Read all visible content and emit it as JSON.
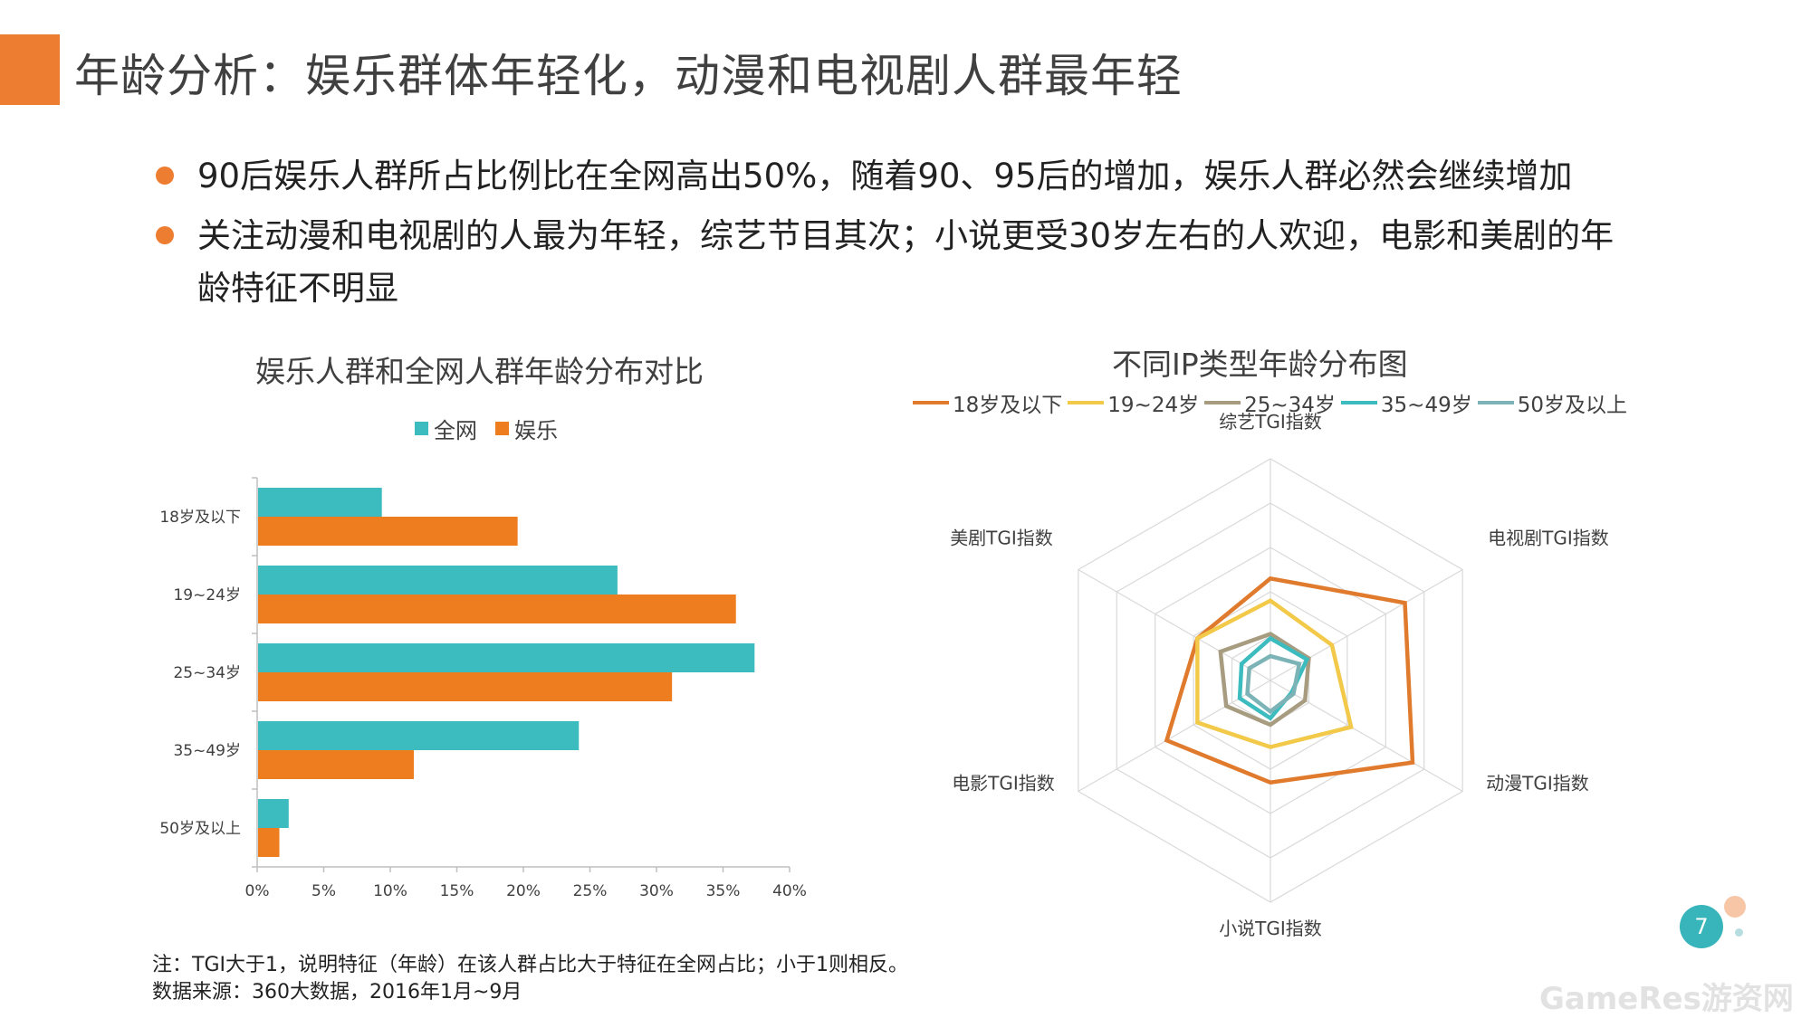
{
  "page": {
    "title": "年龄分析：娱乐群体年轻化，动漫和电视剧人群最年轻",
    "page_number": "7",
    "watermark": "GameRes游资网"
  },
  "bullets": [
    "90后娱乐人群所占比例比在全网高出50%，随着90、95后的增加，娱乐人群必然会继续增加",
    "关注动漫和电视剧的人最为年轻，综艺节目其次；小说更受30岁左右的人欢迎，电影和美剧的年龄特征不明显"
  ],
  "notes": {
    "line1": "注：TGI大于1，说明特征（年龄）在该人群占比大于特征在全网占比；小于1则相反。",
    "line2": "数据来源：360大数据，2016年1月~9月"
  },
  "colors": {
    "accent": "#ed7d31",
    "teal": "#3dbcbf",
    "orange": "#ed7d1e",
    "r18": "#e07a2c",
    "r19": "#f3c94a",
    "r25": "#a89c80",
    "r35": "#3dbcbf",
    "r50": "#7bb3b6"
  },
  "chart_data": [
    {
      "type": "bar",
      "orientation": "horizontal",
      "title": "娱乐人群和全网人群年龄分布对比",
      "categories": [
        "18岁及以下",
        "19~24岁",
        "25~34岁",
        "35~49岁",
        "50岁及以上"
      ],
      "series": [
        {
          "name": "全网",
          "values": [
            9.3,
            27.0,
            37.3,
            24.1,
            2.3
          ]
        },
        {
          "name": "娱乐",
          "values": [
            19.5,
            35.9,
            31.1,
            11.7,
            1.6
          ]
        }
      ],
      "xlim": [
        0,
        40
      ],
      "xticks": [
        "0%",
        "5%",
        "10%",
        "15%",
        "20%",
        "25%",
        "30%",
        "35%",
        "40%"
      ],
      "xlabel": "",
      "ylabel": "",
      "legend_position": "top"
    },
    {
      "type": "radar",
      "title": "不同IP类型年龄分布图",
      "axes": [
        "综艺TGI指数",
        "电视剧TGI指数",
        "动漫TGI指数",
        "小说TGI指数",
        "电影TGI指数",
        "美剧TGI指数"
      ],
      "r_max": 5,
      "rings": 5,
      "series": [
        {
          "name": "18岁及以下",
          "values": [
            2.3,
            3.5,
            3.7,
            2.3,
            2.7,
            1.9
          ]
        },
        {
          "name": "19~24岁",
          "values": [
            1.8,
            1.6,
            2.1,
            1.5,
            1.9,
            1.9
          ]
        },
        {
          "name": "25~34岁",
          "values": [
            1.05,
            1.0,
            0.9,
            1.0,
            1.15,
            1.3
          ]
        },
        {
          "name": "35~49岁",
          "values": [
            0.95,
            0.95,
            0.55,
            0.85,
            0.8,
            0.75
          ]
        },
        {
          "name": "50岁及以上",
          "values": [
            0.55,
            0.75,
            0.6,
            0.7,
            0.6,
            0.55
          ]
        }
      ],
      "legend_position": "top"
    }
  ]
}
